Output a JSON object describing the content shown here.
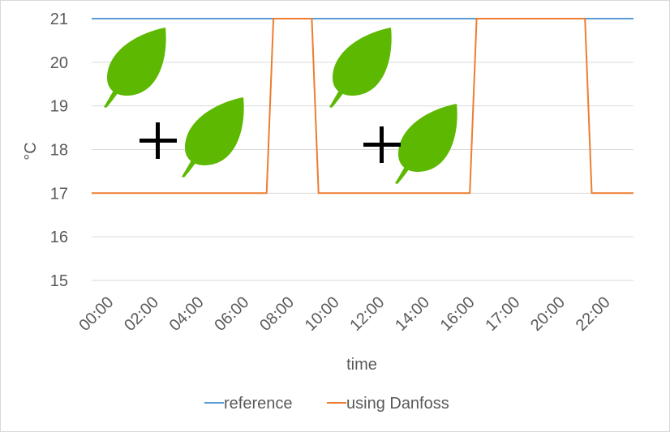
{
  "chart_data": {
    "type": "line",
    "title": "",
    "xlabel": "time",
    "ylabel": "°C",
    "ylim": [
      15,
      21
    ],
    "yticks": [
      15,
      16,
      17,
      18,
      19,
      20,
      21
    ],
    "grid": true,
    "legend_position": "bottom",
    "x_tick_labels": [
      "00:00",
      "02:00",
      "04:00",
      "06:00",
      "08:00",
      "10:00",
      "12:00",
      "14:00",
      "16:00",
      "17:00",
      "20:00",
      "22:00"
    ],
    "series": [
      {
        "name": "reference",
        "color": "#5b9bd5",
        "x": [
          0,
          24
        ],
        "y": [
          21,
          21
        ]
      },
      {
        "name": "using Danfoss",
        "color": "#ed7d31",
        "x": [
          0,
          7.75,
          8.05,
          9.75,
          10.05,
          16.75,
          17.05,
          21.85,
          22.15,
          24
        ],
        "y": [
          17,
          17,
          21,
          21,
          17,
          17,
          21,
          21,
          17,
          17
        ]
      }
    ],
    "decorations": {
      "leaf_color": "#5cb800",
      "plus_color": "#000000"
    }
  }
}
